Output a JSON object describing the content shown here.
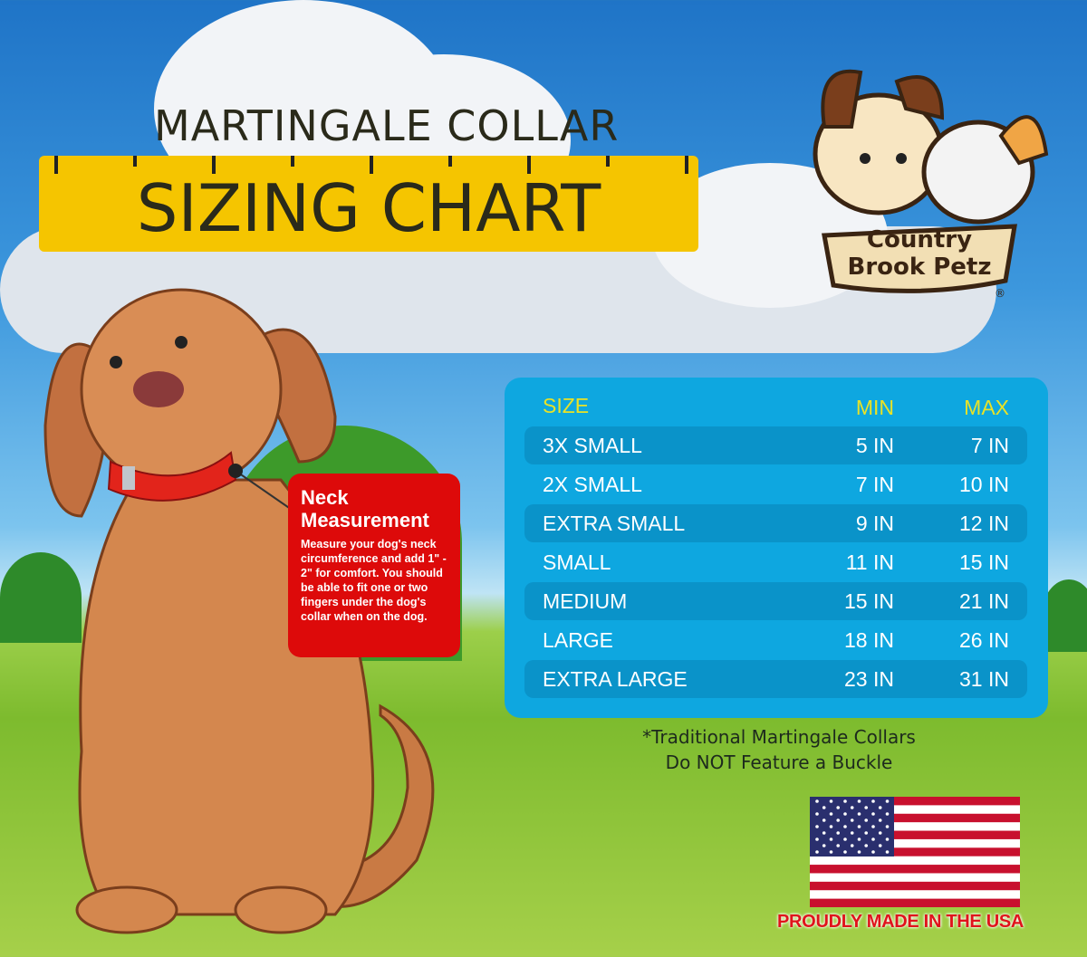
{
  "title": {
    "line1": "MARTINGALE COLLAR",
    "line2": "SIZING CHART"
  },
  "logo": {
    "text_line1": "Country",
    "text_line2": "Brook Petz",
    "registered": "®"
  },
  "neck_box": {
    "heading_line1": "Neck",
    "heading_line2": "Measurement",
    "body": "Measure your dog's neck circumference and add 1\" - 2\" for comfort. You should be able to fit one or two fingers under the dog's collar when on the dog."
  },
  "colors": {
    "ruler": "#f5c500",
    "table_bg": "#0ea7e0",
    "table_row_alt": "#0a93c9",
    "header_text": "#e8e227",
    "neck_box": "#dd0a0a"
  },
  "size_table": {
    "headers": [
      "SIZE",
      "MIN",
      "MAX"
    ],
    "rows": [
      [
        "3X SMALL",
        "5 IN",
        "7 IN"
      ],
      [
        "2X SMALL",
        "7 IN",
        "10 IN"
      ],
      [
        "EXTRA SMALL",
        "9 IN",
        "12 IN"
      ],
      [
        "SMALL",
        "11 IN",
        "15 IN"
      ],
      [
        "MEDIUM",
        "15 IN",
        "21 IN"
      ],
      [
        "LARGE",
        "18 IN",
        "26 IN"
      ],
      [
        "EXTRA LARGE",
        "23 IN",
        "31 IN"
      ]
    ]
  },
  "note": {
    "line1": "*Traditional Martingale Collars",
    "line2": "Do NOT Feature a Buckle"
  },
  "made_in": "PROUDLY MADE IN THE USA"
}
